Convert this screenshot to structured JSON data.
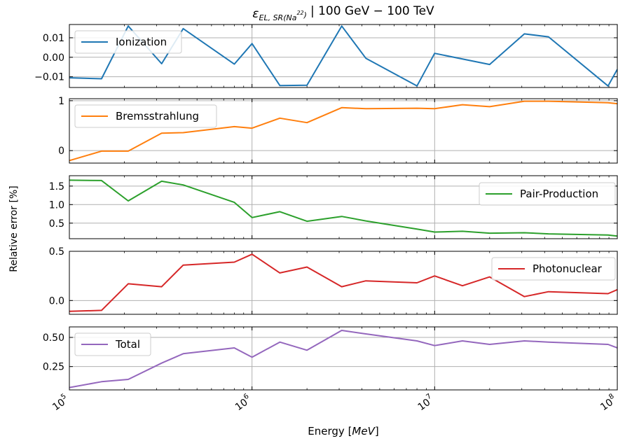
{
  "figure": {
    "title": "ε_EL,SR(Na²²) | 100 GeV − 100 TeV",
    "title_parts": {
      "symbol": "ε",
      "subscript": "EL, SR(Na",
      "superscript": "22",
      "subscript_close": ")",
      "range": "| 100 GeV − 100 TeV"
    },
    "xlabel": "Energy [MeV]",
    "xlabel_parts": {
      "plain": "Energy [",
      "italic": "MeV",
      "close": "]"
    },
    "ylabel": "Relative error [%]",
    "xticks": [
      {
        "value": 100000,
        "base": "10",
        "exp": "5"
      },
      {
        "value": 1000000,
        "base": "10",
        "exp": "6"
      },
      {
        "value": 10000000,
        "base": "10",
        "exp": "7"
      },
      {
        "value": 100000000,
        "base": "10",
        "exp": "8"
      }
    ]
  },
  "chart_data": [
    {
      "type": "line",
      "xscale": "log",
      "xlim": [
        100000,
        100000000
      ],
      "ylim": [
        -0.0155,
        0.0168
      ],
      "grid": true,
      "legend": "upper-left",
      "series": [
        {
          "name": "Ionization",
          "color": "#1f77b4",
          "x": [
            100000,
            150000,
            210000,
            320000,
            420000,
            800000,
            1000000,
            1420000,
            2000000,
            3100000,
            4200000,
            8000000,
            10000000,
            20000000,
            31000000,
            42000000,
            89000000,
            100000000
          ],
          "y": [
            -0.0105,
            -0.011,
            0.016,
            -0.0033,
            0.0147,
            -0.0035,
            0.007,
            -0.0145,
            -0.0143,
            0.016,
            -0.0005,
            -0.0147,
            0.002,
            -0.0037,
            0.012,
            0.0105,
            -0.0147,
            -0.0062
          ]
        }
      ],
      "yticks": [
        {
          "value": 0.01,
          "label": "0.01"
        },
        {
          "value": 0.0,
          "label": "0.00"
        },
        {
          "value": -0.01,
          "label": "−0.01"
        }
      ]
    },
    {
      "type": "line",
      "xscale": "log",
      "xlim": [
        100000,
        100000000
      ],
      "ylim": [
        -0.25,
        1.04
      ],
      "grid": true,
      "legend": "upper-left",
      "series": [
        {
          "name": "Bremsstrahlung",
          "color": "#ff7f0e",
          "x": [
            100000,
            150000,
            210000,
            320000,
            420000,
            800000,
            1000000,
            1420000,
            2000000,
            3100000,
            4200000,
            8000000,
            10000000,
            14200000,
            20000000,
            31000000,
            42000000,
            89000000,
            100000000
          ],
          "y": [
            -0.2,
            -0.01,
            -0.01,
            0.35,
            0.36,
            0.48,
            0.45,
            0.65,
            0.56,
            0.86,
            0.84,
            0.85,
            0.84,
            0.92,
            0.88,
            0.99,
            0.99,
            0.96,
            0.94
          ]
        }
      ],
      "yticks": [
        {
          "value": 1,
          "label": "1"
        },
        {
          "value": 0,
          "label": "0"
        }
      ]
    },
    {
      "type": "line",
      "xscale": "log",
      "xlim": [
        100000,
        100000000
      ],
      "ylim": [
        0.08,
        1.78
      ],
      "grid": true,
      "legend": "center-right",
      "series": [
        {
          "name": "Pair-Production",
          "color": "#2ca02c",
          "x": [
            100000,
            150000,
            210000,
            320000,
            420000,
            800000,
            1000000,
            1420000,
            2000000,
            3100000,
            4200000,
            8000000,
            10000000,
            14200000,
            20000000,
            31000000,
            42000000,
            89000000,
            100000000
          ],
          "y": [
            1.66,
            1.65,
            1.1,
            1.63,
            1.53,
            1.06,
            0.65,
            0.81,
            0.55,
            0.68,
            0.56,
            0.34,
            0.26,
            0.28,
            0.23,
            0.24,
            0.21,
            0.18,
            0.15
          ]
        }
      ],
      "yticks": [
        {
          "value": 1.5,
          "label": "1.5"
        },
        {
          "value": 1.0,
          "label": "1.0"
        },
        {
          "value": 0.5,
          "label": "0.5"
        }
      ]
    },
    {
      "type": "line",
      "xscale": "log",
      "xlim": [
        100000,
        100000000
      ],
      "ylim": [
        -0.14,
        0.5
      ],
      "grid": true,
      "legend": "center-right",
      "series": [
        {
          "name": "Photonuclear",
          "color": "#d62728",
          "x": [
            100000,
            150000,
            210000,
            320000,
            420000,
            800000,
            1000000,
            1420000,
            2000000,
            3100000,
            4200000,
            8000000,
            10000000,
            14200000,
            20000000,
            31000000,
            42000000,
            89000000,
            100000000
          ],
          "y": [
            -0.11,
            -0.1,
            0.17,
            0.14,
            0.36,
            0.39,
            0.47,
            0.28,
            0.34,
            0.14,
            0.2,
            0.18,
            0.25,
            0.15,
            0.24,
            0.04,
            0.09,
            0.07,
            0.11
          ]
        }
      ],
      "yticks": [
        {
          "value": 0.5,
          "label": "0.5"
        },
        {
          "value": 0.0,
          "label": "0.0"
        }
      ]
    },
    {
      "type": "line",
      "xscale": "log",
      "xlim": [
        100000,
        100000000
      ],
      "ylim": [
        0.05,
        0.59
      ],
      "grid": true,
      "legend": "upper-left",
      "series": [
        {
          "name": "Total",
          "color": "#9467bd",
          "x": [
            100000,
            150000,
            210000,
            320000,
            420000,
            800000,
            1000000,
            1420000,
            2000000,
            3100000,
            4200000,
            8000000,
            10000000,
            14200000,
            20000000,
            31000000,
            42000000,
            89000000,
            100000000
          ],
          "y": [
            0.07,
            0.12,
            0.14,
            0.28,
            0.36,
            0.41,
            0.33,
            0.46,
            0.39,
            0.56,
            0.53,
            0.47,
            0.43,
            0.47,
            0.44,
            0.47,
            0.46,
            0.44,
            0.41
          ]
        }
      ],
      "yticks": [
        {
          "value": 0.5,
          "label": "0.50"
        },
        {
          "value": 0.25,
          "label": "0.25"
        }
      ]
    }
  ]
}
